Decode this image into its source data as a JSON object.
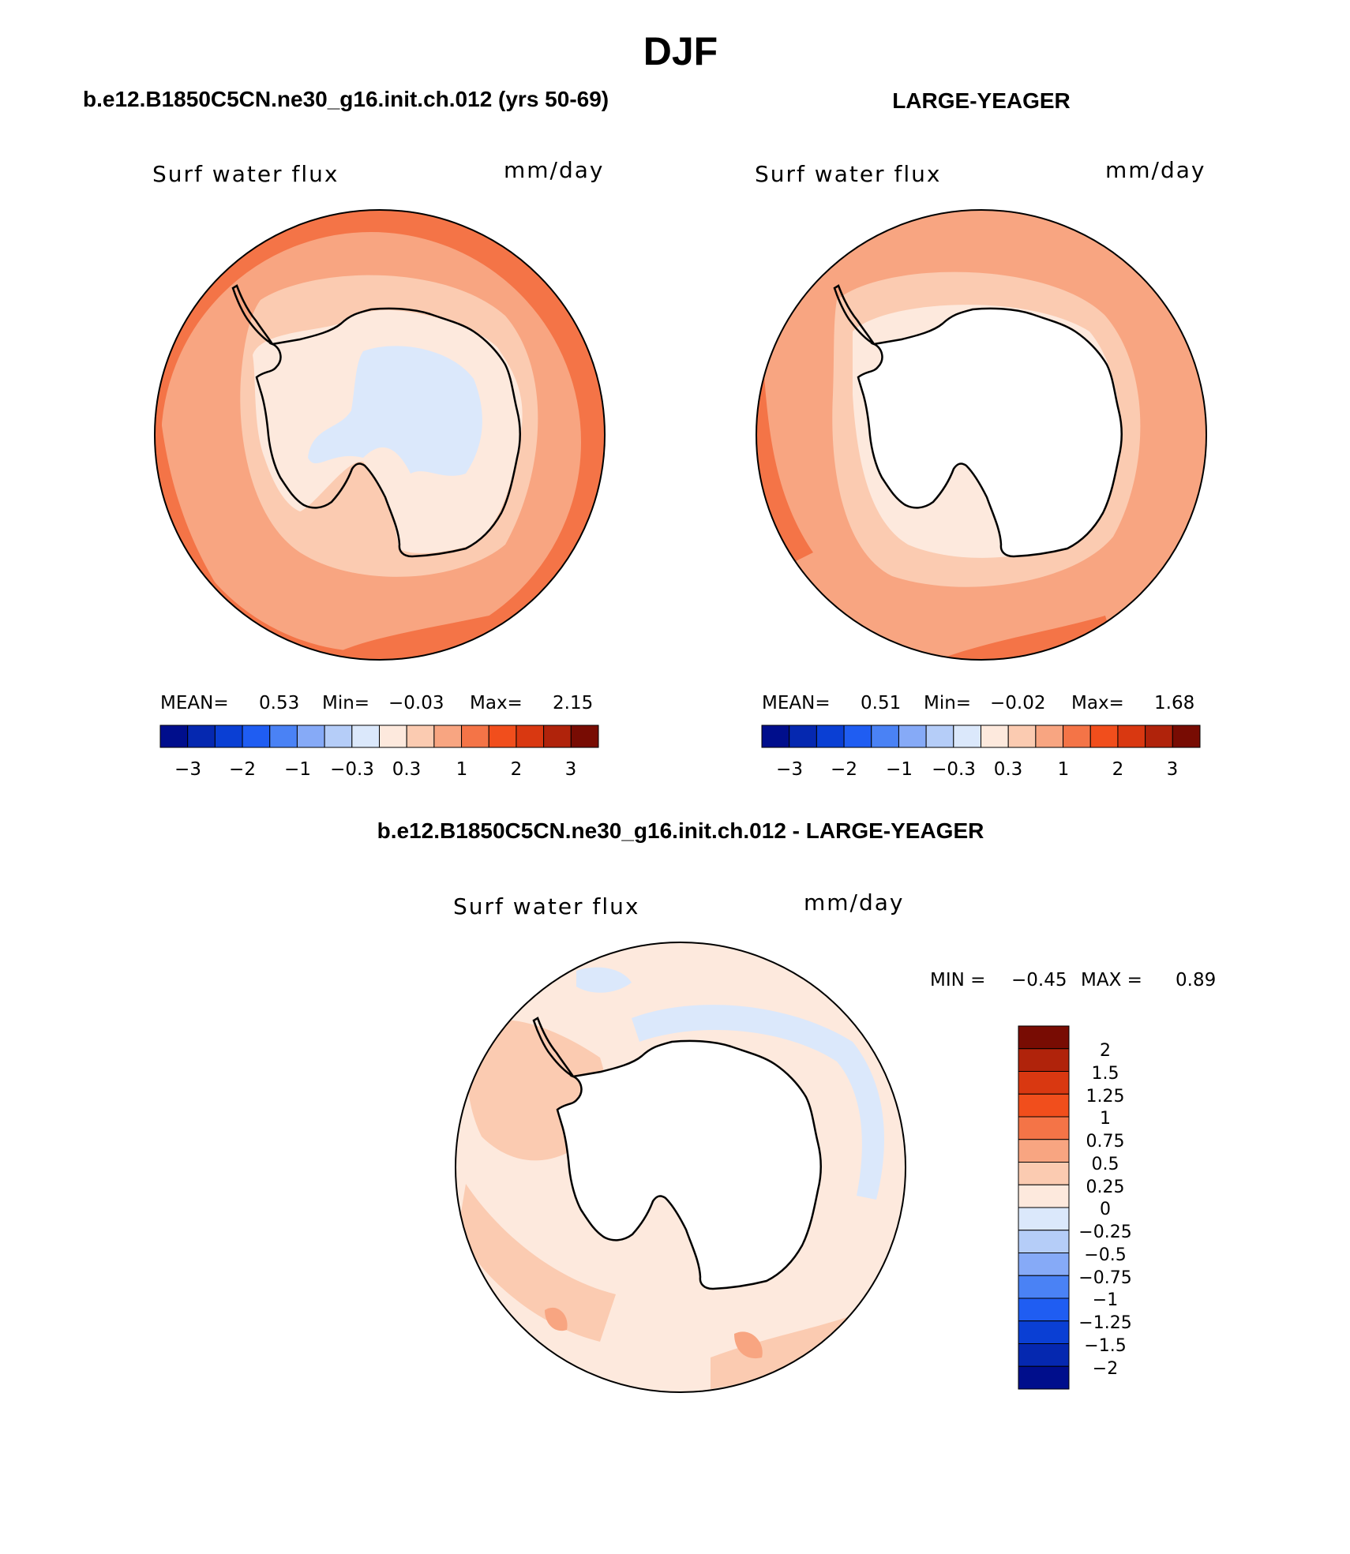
{
  "page": {
    "title": "DJF",
    "top_left_case": "b.e12.B1850C5CN.ne30_g16.init.ch.012 (yrs 50-69)",
    "top_right_case": "LARGE-YEAGER",
    "bottom_case": "b.e12.B1850C5CN.ne30_g16.init.ch.012 - LARGE-YEAGER"
  },
  "colors": {
    "background": "#ffffff",
    "land_mask": "#ffffff",
    "coastline": "#000000",
    "abs_scale": [
      "#000e8c",
      "#0528b0",
      "#0a3fd4",
      "#1f5df2",
      "#4a82f5",
      "#86aaf7",
      "#b5cdf8",
      "#dbe8fb",
      "#fde9dd",
      "#fbcbb1",
      "#f8a581",
      "#f47447",
      "#f14e1c",
      "#d93811",
      "#b0230b",
      "#780c03"
    ],
    "diff_scale": [
      "#000e8c",
      "#0528b0",
      "#0a3fd4",
      "#1f5df2",
      "#4a82f5",
      "#86aaf7",
      "#b5cdf8",
      "#dbe8fb",
      "#fde9dd",
      "#fbcbb1",
      "#f8a581",
      "#f47447",
      "#f14e1c",
      "#d93811",
      "#b0230b",
      "#780c03"
    ]
  },
  "panels": [
    {
      "id": "ctrl",
      "variable": "Surf water flux",
      "units": "mm/day",
      "stats": {
        "mean_label": "MEAN=",
        "mean": "0.53",
        "min_label": "Min=",
        "min": "−0.03",
        "max_label": "Max=",
        "max": "2.15"
      },
      "colorbar_labels": [
        "−3",
        "−2",
        "−1",
        "−0.3",
        "0.3",
        "1",
        "2",
        "3"
      ],
      "ice_sheet_shading": true
    },
    {
      "id": "obs",
      "variable": "Surf water flux",
      "units": "mm/day",
      "stats": {
        "mean_label": "MEAN=",
        "mean": "0.51",
        "min_label": "Min=",
        "min": "−0.02",
        "max_label": "Max=",
        "max": "1.68"
      },
      "colorbar_labels": [
        "−3",
        "−2",
        "−1",
        "−0.3",
        "0.3",
        "1",
        "2",
        "3"
      ],
      "ice_sheet_shading": false
    },
    {
      "id": "diff",
      "variable": "Surf water flux",
      "units": "mm/day",
      "stats": {
        "min_label": "MIN =",
        "min": "−0.45",
        "max_label": "MAX =",
        "max": "0.89"
      },
      "colorbar_labels": [
        "2",
        "1.5",
        "1.25",
        "1",
        "0.75",
        "0.5",
        "0.25",
        "0",
        "−0.25",
        "−0.5",
        "−0.75",
        "−1",
        "−1.25",
        "−1.5",
        "−2"
      ],
      "ice_sheet_shading": false
    }
  ]
}
